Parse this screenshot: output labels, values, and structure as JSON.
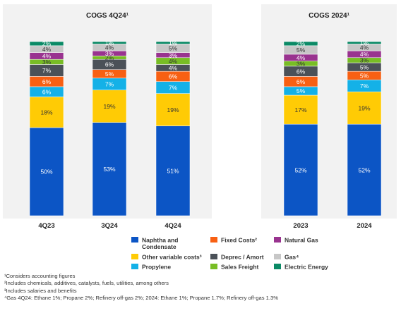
{
  "colors": {
    "naphtha": "#0c55c5",
    "other_variable": "#ffcb05",
    "propylene": "#14b1e7",
    "fixed_costs": "#f86013",
    "deprec_amort": "#4b5158",
    "sales_freight": "#78bd25",
    "natural_gas": "#99338f",
    "gas": "#c7c7c7",
    "electric_energy": "#0b8a66"
  },
  "legend": [
    {
      "key": "naphtha",
      "label_line1": "Naphtha and",
      "label_line2": "Condensate"
    },
    {
      "key": "fixed_costs",
      "label_line1": "Fixed Costs²",
      "label_line2": ""
    },
    {
      "key": "natural_gas",
      "label_line1": "Natural Gas",
      "label_line2": ""
    },
    {
      "key": "other_variable",
      "label_line1": "Other variable costs³",
      "label_line2": ""
    },
    {
      "key": "deprec_amort",
      "label_line1": "Deprec / Amort",
      "label_line2": ""
    },
    {
      "key": "gas",
      "label_line1": "Gas⁴",
      "label_line2": ""
    },
    {
      "key": "propylene",
      "label_line1": "Propylene",
      "label_line2": ""
    },
    {
      "key": "sales_freight",
      "label_line1": "Sales Freight",
      "label_line2": ""
    },
    {
      "key": "electric_energy",
      "label_line1": "Electric Energy",
      "label_line2": ""
    }
  ],
  "chart_data": [
    {
      "type": "bar",
      "stacked": true,
      "title": "COGS 4Q24¹",
      "categories": [
        "4Q23",
        "3Q24",
        "4Q24"
      ],
      "series": [
        {
          "name": "Naphtha and Condensate",
          "key": "naphtha",
          "values": [
            50,
            53,
            51
          ]
        },
        {
          "name": "Other variable costs³",
          "key": "other_variable",
          "values": [
            18,
            19,
            19
          ]
        },
        {
          "name": "Propylene",
          "key": "propylene",
          "values": [
            6,
            7,
            7
          ]
        },
        {
          "name": "Fixed Costs²",
          "key": "fixed_costs",
          "values": [
            6,
            5,
            6
          ]
        },
        {
          "name": "Deprec / Amort",
          "key": "deprec_amort",
          "values": [
            7,
            6,
            4
          ]
        },
        {
          "name": "Sales Freight",
          "key": "sales_freight",
          "values": [
            3,
            2,
            4
          ]
        },
        {
          "name": "Natural Gas",
          "key": "natural_gas",
          "values": [
            4,
            3,
            3
          ]
        },
        {
          "name": "Gas⁴",
          "key": "gas",
          "values": [
            4,
            4,
            5
          ]
        },
        {
          "name": "Electric Energy",
          "key": "electric_energy",
          "values": [
            2,
            1,
            1
          ]
        }
      ],
      "ylim": [
        0,
        100
      ],
      "unit": "%"
    },
    {
      "type": "bar",
      "stacked": true,
      "title": "COGS 2024¹",
      "categories": [
        "2023",
        "2024"
      ],
      "series": [
        {
          "name": "Naphtha and Condensate",
          "key": "naphtha",
          "values": [
            52,
            52
          ]
        },
        {
          "name": "Other variable costs³",
          "key": "other_variable",
          "values": [
            17,
            19
          ]
        },
        {
          "name": "Propylene",
          "key": "propylene",
          "values": [
            5,
            7
          ]
        },
        {
          "name": "Fixed Costs²",
          "key": "fixed_costs",
          "values": [
            6,
            5
          ]
        },
        {
          "name": "Deprec / Amort",
          "key": "deprec_amort",
          "values": [
            6,
            5
          ]
        },
        {
          "name": "Sales Freight",
          "key": "sales_freight",
          "values": [
            3,
            3
          ]
        },
        {
          "name": "Natural Gas",
          "key": "natural_gas",
          "values": [
            4,
            4
          ]
        },
        {
          "name": "Gas⁴",
          "key": "gas",
          "values": [
            5,
            4
          ]
        },
        {
          "name": "Electric Energy",
          "key": "electric_energy",
          "values": [
            2,
            1
          ]
        }
      ],
      "ylim": [
        0,
        100
      ],
      "unit": "%"
    }
  ],
  "footnotes": [
    "¹Considers accounting figures",
    "²Includes chemicals, additives, catalysts, fuels, utilities, among others",
    "³Includes salaries and benefits",
    "⁴Gas 4Q24:  Ethane 1%; Propane 2%; Refinery off-gas 2%; 2024:  Ethane 1%; Propane 1.7%; Refinery off-gas 1.3%"
  ]
}
